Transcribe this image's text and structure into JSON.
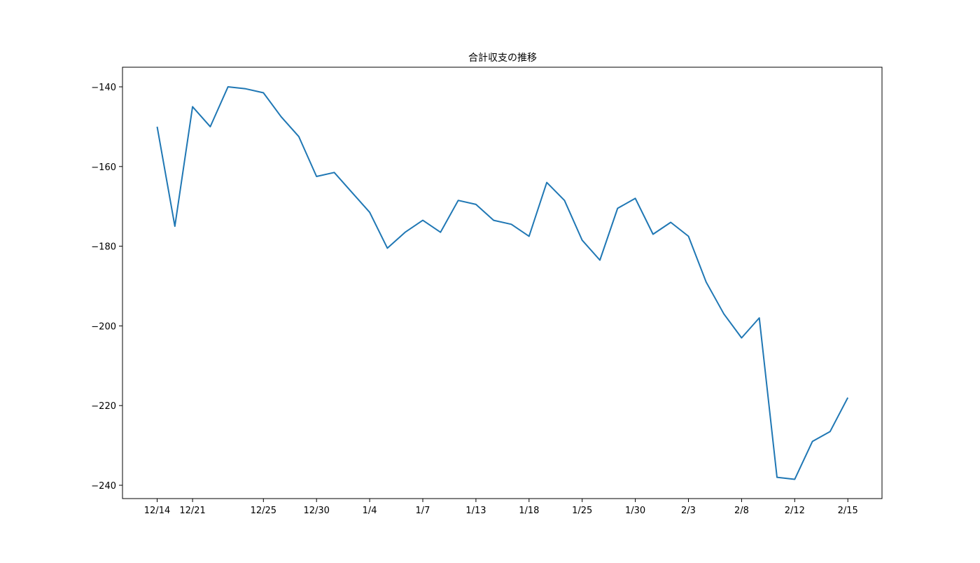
{
  "chart_data": {
    "type": "line",
    "title": "合計収支の推移",
    "xlabel": "",
    "ylabel": "",
    "grid": false,
    "x_tick_labels": [
      "12/14",
      "12/21",
      "12/25",
      "12/30",
      "1/4",
      "1/7",
      "1/13",
      "1/18",
      "1/25",
      "1/30",
      "2/3",
      "2/8",
      "2/12",
      "2/15"
    ],
    "y_ticks": [
      -140,
      -160,
      -180,
      -200,
      -220,
      -240
    ],
    "ylim": [
      -243,
      -135
    ],
    "series": [
      {
        "color": "#1f77b4",
        "x": [
          "12/14",
          "",
          "12/21",
          "",
          "",
          "",
          "12/25",
          "",
          "",
          "12/30",
          "",
          "",
          "1/4",
          "",
          "",
          "1/7",
          "",
          "",
          "1/13",
          "",
          "",
          "1/18",
          "",
          "",
          "1/25",
          "",
          "",
          "1/30",
          "",
          "",
          "2/3",
          "",
          "",
          "2/8",
          "",
          "",
          "2/12",
          "",
          "",
          "2/15"
        ],
        "values": [
          -150,
          -175,
          -145,
          -150,
          -140,
          -140.5,
          -141.5,
          -147.5,
          -152.5,
          -162.5,
          -161.5,
          -166.5,
          -171.5,
          -180.5,
          -176.5,
          -173.5,
          -176.5,
          -168.5,
          -169.5,
          -173.5,
          -174.5,
          -177.5,
          -164,
          -168.5,
          -178.5,
          -183.5,
          -170.5,
          -168,
          -177,
          -174,
          -177.5,
          -189,
          -197,
          -203,
          -198,
          -238,
          -238.5,
          -229,
          -226.5,
          -218
        ]
      }
    ]
  }
}
